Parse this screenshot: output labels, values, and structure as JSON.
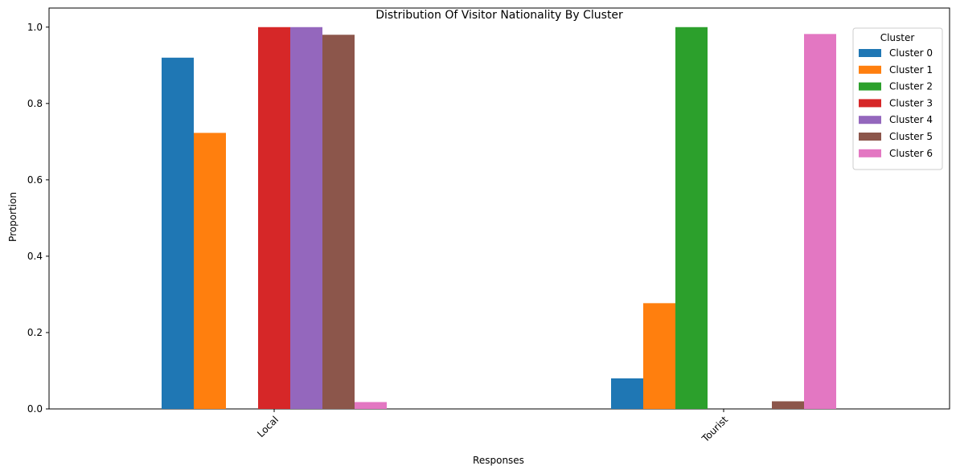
{
  "chart_data": {
    "type": "bar",
    "title": "Distribution Of Visitor Nationality By Cluster",
    "xlabel": "Responses",
    "ylabel": "Proportion",
    "categories": [
      "Local",
      "Tourist"
    ],
    "ylim": [
      0,
      1.05
    ],
    "yticks": [
      0.0,
      0.2,
      0.4,
      0.6,
      0.8,
      1.0
    ],
    "ytick_labels": [
      "0.0",
      "0.2",
      "0.4",
      "0.6",
      "0.8",
      "1.0"
    ],
    "legend": {
      "title": "Cluster",
      "placement": "top-right"
    },
    "grid": false,
    "series": [
      {
        "name": "Cluster 0",
        "color": "#1f77b4",
        "values": [
          0.92,
          0.08
        ]
      },
      {
        "name": "Cluster 1",
        "color": "#ff7f0e",
        "values": [
          0.723,
          0.277
        ]
      },
      {
        "name": "Cluster 2",
        "color": "#2ca02c",
        "values": [
          0.0,
          1.0
        ]
      },
      {
        "name": "Cluster 3",
        "color": "#d62728",
        "values": [
          1.0,
          0.0
        ]
      },
      {
        "name": "Cluster 4",
        "color": "#9467bd",
        "values": [
          1.0,
          0.0
        ]
      },
      {
        "name": "Cluster 5",
        "color": "#8c564b",
        "values": [
          0.98,
          0.02
        ]
      },
      {
        "name": "Cluster 6",
        "color": "#e377c2",
        "values": [
          0.018,
          0.982
        ]
      }
    ]
  }
}
